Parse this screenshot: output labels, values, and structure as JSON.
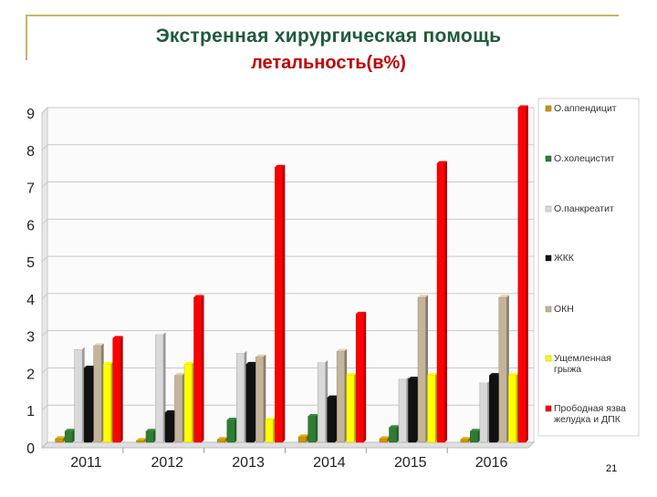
{
  "slide": {
    "title_line1": "Экстренная хирургическая помощь",
    "title_line2": "летальность(в%)",
    "page_number": "21"
  },
  "chart_data": {
    "type": "bar",
    "title": "Экстренная хирургическая помощь летальность(в%)",
    "categories": [
      "2011",
      "2012",
      "2013",
      "2014",
      "2015",
      "2016"
    ],
    "ylim": [
      0,
      9
    ],
    "yticks": [
      "0",
      "1",
      "2",
      "3",
      "4",
      "5",
      "6",
      "7",
      "8",
      "9"
    ],
    "grid": true,
    "legend_position": "right",
    "series": [
      {
        "name": "О.аппендицит",
        "color": "#c8960a",
        "values": [
          0.1,
          0.05,
          0.08,
          0.15,
          0.1,
          0.08
        ]
      },
      {
        "name": "О.холецистит",
        "color": "#2e7d32",
        "values": [
          0.3,
          0.3,
          0.6,
          0.7,
          0.4,
          0.3
        ]
      },
      {
        "name": "О.панкреатит",
        "color": "#d9d9d9",
        "values": [
          2.5,
          2.9,
          2.4,
          2.15,
          1.7,
          1.6
        ]
      },
      {
        "name": "ЖКК",
        "color": "#111111",
        "values": [
          2.0,
          0.8,
          2.1,
          1.2,
          1.7,
          1.8
        ]
      },
      {
        "name": "ОКН",
        "color": "#c4b49a",
        "values": [
          2.6,
          1.8,
          2.3,
          2.45,
          3.9,
          3.9
        ]
      },
      {
        "name": "Ущемленная грыжа",
        "color": "#ffff00",
        "values": [
          2.1,
          2.1,
          0.6,
          1.8,
          1.8,
          1.8
        ]
      },
      {
        "name": "Прободная язва желудка и ДПК",
        "color": "#ff0000",
        "values": [
          2.8,
          3.9,
          7.4,
          3.45,
          7.5,
          9.0
        ]
      }
    ]
  }
}
